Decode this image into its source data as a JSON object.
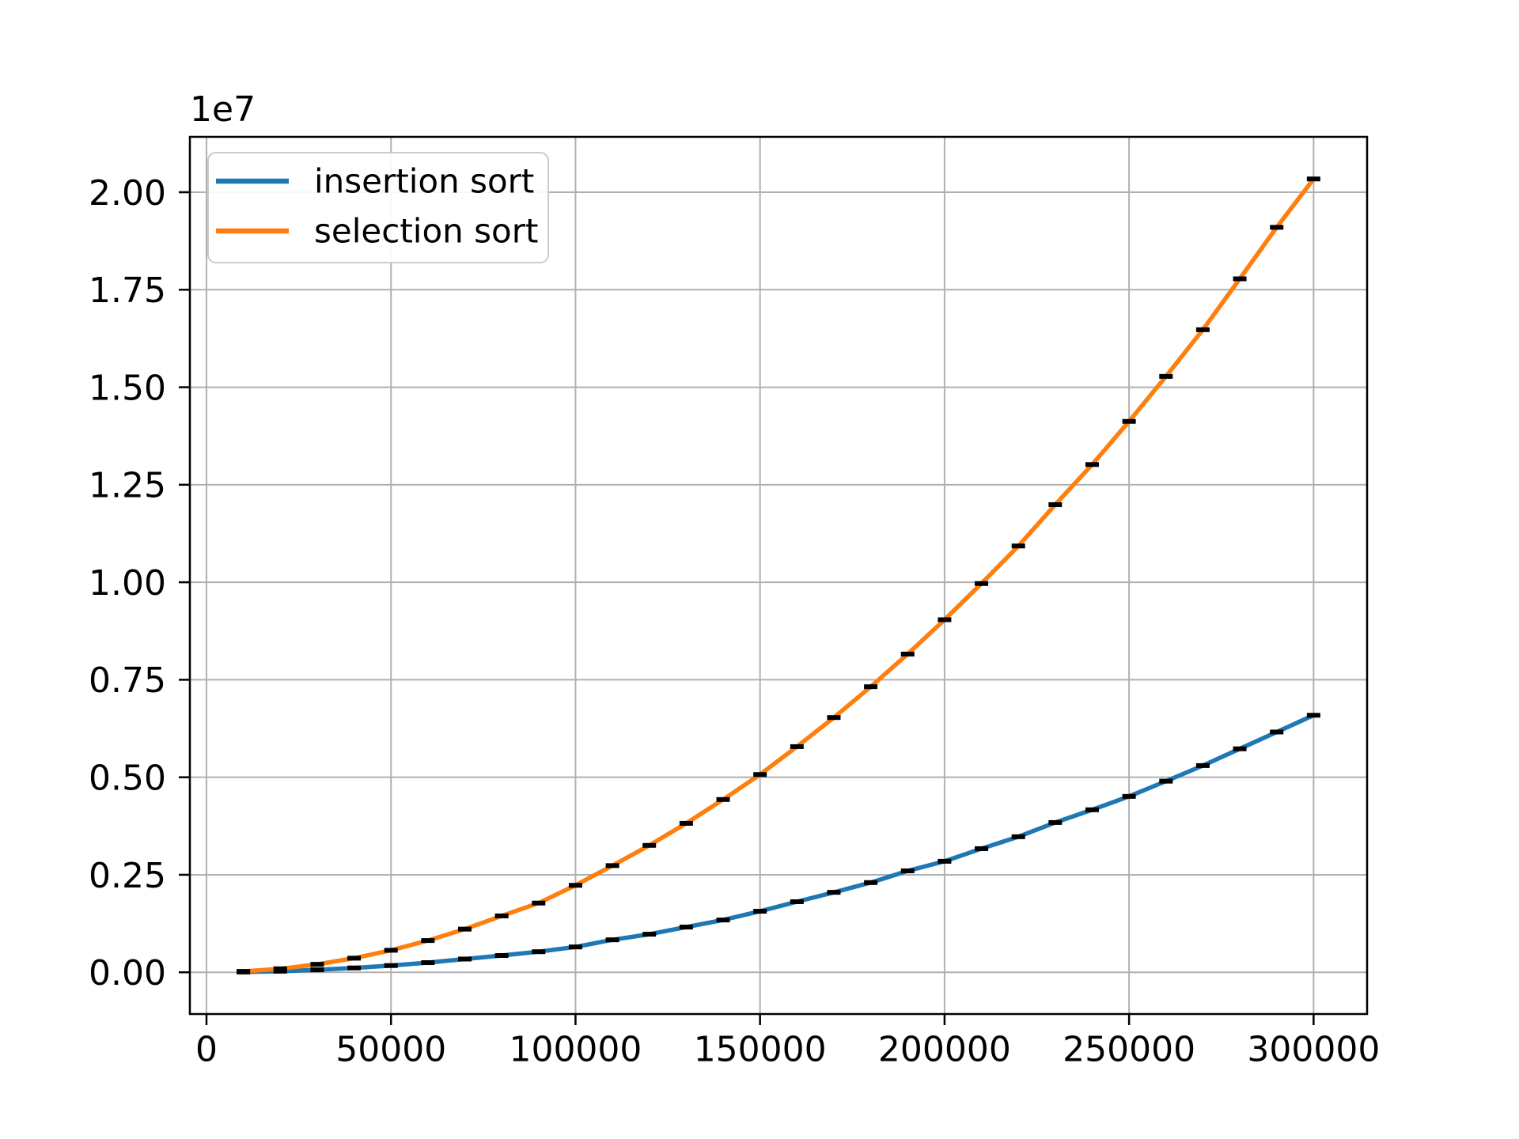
{
  "figure": {
    "background": "#ffffff"
  },
  "chart_data": {
    "type": "line",
    "title": "",
    "xlabel": "",
    "ylabel": "",
    "offset_text": "1e7",
    "grid": true,
    "grid_color": "#b0b0b0",
    "spine_color": "#000000",
    "legend_position": "upper left",
    "xlim": [
      -4500,
      314500
    ],
    "ylim": [
      -1070000,
      21420000
    ],
    "xticks": [
      0,
      50000,
      100000,
      150000,
      200000,
      250000,
      300000
    ],
    "xtick_labels": [
      "0",
      "50000",
      "100000",
      "150000",
      "200000",
      "250000",
      "300000"
    ],
    "yticks": [
      0,
      2500000,
      5000000,
      7500000,
      10000000,
      12500000,
      15000000,
      17500000,
      20000000
    ],
    "ytick_labels": [
      "0.00",
      "0.25",
      "0.50",
      "0.75",
      "1.00",
      "1.25",
      "1.50",
      "1.75",
      "2.00"
    ],
    "marker": {
      "shape": "hline-dash",
      "color": "#000000",
      "width": 17,
      "height": 6
    },
    "x": [
      10000,
      20000,
      30000,
      40000,
      50000,
      60000,
      70000,
      80000,
      90000,
      100000,
      110000,
      120000,
      130000,
      140000,
      150000,
      160000,
      170000,
      180000,
      190000,
      200000,
      210000,
      220000,
      230000,
      240000,
      250000,
      260000,
      270000,
      280000,
      290000,
      300000
    ],
    "series": [
      {
        "name": "insertion sort",
        "color": "#1f77b4",
        "values": [
          7000,
          28000,
          63000,
          112000,
          173000,
          248000,
          340000,
          430000,
          528000,
          650000,
          833000,
          976000,
          1159000,
          1341000,
          1565000,
          1810000,
          2050000,
          2300000,
          2600000,
          2846000,
          3170000,
          3476000,
          3840000,
          4167000,
          4510000,
          4900000,
          5300000,
          5730000,
          6160000,
          6590000
        ]
      },
      {
        "name": "selection sort",
        "color": "#ff7f0e",
        "values": [
          23000,
          90000,
          204000,
          362000,
          565000,
          814000,
          1107000,
          1446000,
          1775000,
          2230000,
          2735000,
          3254000,
          3819000,
          4430000,
          5070000,
          5786000,
          6531000,
          7322000,
          8159000,
          9040000,
          9967000,
          10930000,
          11990000,
          13018000,
          14125000,
          15278000,
          16475000,
          17780000,
          19100000,
          20340000
        ]
      }
    ]
  }
}
